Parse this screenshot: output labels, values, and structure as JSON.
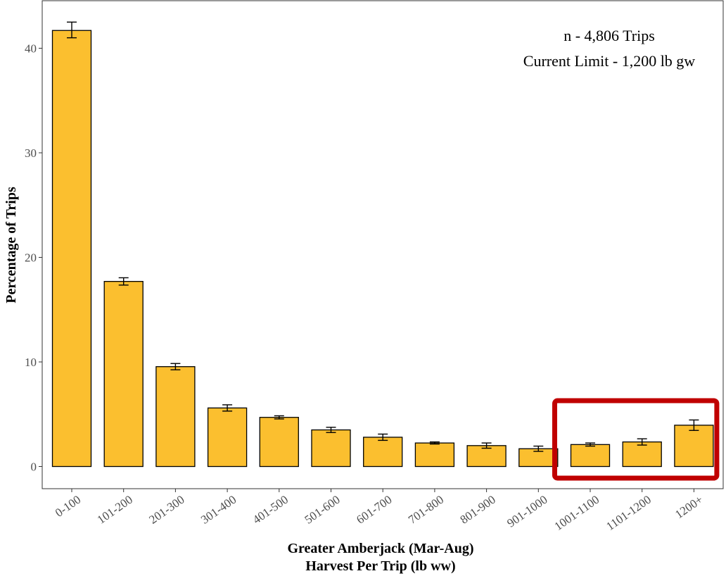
{
  "chart_data": {
    "type": "bar",
    "xlabel_lines": [
      "Greater Amberjack (Mar-Aug)",
      "Harvest Per Trip (lb ww)"
    ],
    "ylabel": "Percentage of Trips",
    "ylim": [
      0,
      42.5
    ],
    "yticks": [
      0,
      10,
      20,
      30,
      40
    ],
    "categories": [
      "0-100",
      "101-200",
      "201-300",
      "301-400",
      "401-500",
      "501-600",
      "601-700",
      "701-800",
      "801-900",
      "901-1000",
      "1001-1100",
      "1101-1200",
      "1200+"
    ],
    "values": [
      41.7,
      17.7,
      9.55,
      5.6,
      4.7,
      3.5,
      2.8,
      2.25,
      2.0,
      1.7,
      2.1,
      2.35,
      3.95
    ],
    "error_low": [
      41.0,
      17.35,
      9.25,
      5.3,
      4.55,
      3.25,
      2.5,
      2.15,
      1.75,
      1.45,
      1.95,
      2.05,
      3.45
    ],
    "error_high": [
      42.5,
      18.05,
      9.85,
      5.9,
      4.85,
      3.75,
      3.1,
      2.35,
      2.25,
      1.95,
      2.25,
      2.65,
      4.45
    ],
    "bar_color": "#FBBF2F",
    "highlight": {
      "categories": [
        "1001-1100",
        "1101-1200",
        "1200+"
      ],
      "color": "#C00000"
    },
    "annotations": [
      "n - 4,806 Trips",
      "Current Limit - 1,200 lb gw"
    ],
    "grid": false
  }
}
